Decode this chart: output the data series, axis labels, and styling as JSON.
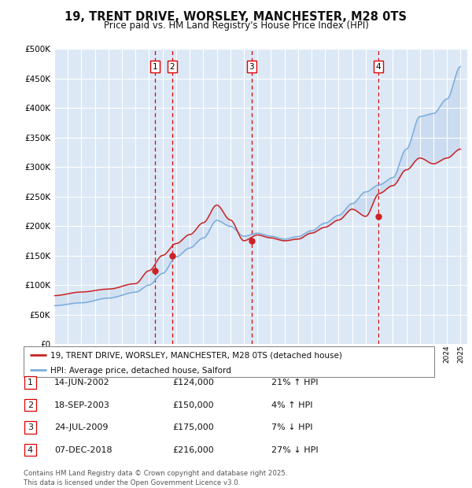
{
  "title": "19, TRENT DRIVE, WORSLEY, MANCHESTER, M28 0TS",
  "subtitle": "Price paid vs. HM Land Registry's House Price Index (HPI)",
  "legend_house": "19, TRENT DRIVE, WORSLEY, MANCHESTER, M28 0TS (detached house)",
  "legend_hpi": "HPI: Average price, detached house, Salford",
  "footer": "Contains HM Land Registry data © Crown copyright and database right 2025.\nThis data is licensed under the Open Government Licence v3.0.",
  "transactions": [
    {
      "num": 1,
      "date": "14-JUN-2002",
      "price": 124000,
      "pct": "21%",
      "dir": "↑",
      "year": 2002.45
    },
    {
      "num": 2,
      "date": "18-SEP-2003",
      "price": 150000,
      "pct": "4%",
      "dir": "↑",
      "year": 2003.71
    },
    {
      "num": 3,
      "date": "24-JUL-2009",
      "price": 175000,
      "pct": "7%",
      "dir": "↓",
      "year": 2009.56
    },
    {
      "num": 4,
      "date": "07-DEC-2018",
      "price": 216000,
      "pct": "27%",
      "dir": "↓",
      "year": 2018.93
    }
  ],
  "hpi_color": "#7aaddc",
  "house_color": "#cc2222",
  "vline_color": "#dd0000",
  "bg_color": "#dce8f5",
  "fill_color": "#c5d8ef",
  "ylim": [
    0,
    500000
  ],
  "xlim_start": 1995.0,
  "xlim_end": 2025.5,
  "ytick_values": [
    0,
    50000,
    100000,
    150000,
    200000,
    250000,
    300000,
    350000,
    400000,
    450000,
    500000
  ]
}
